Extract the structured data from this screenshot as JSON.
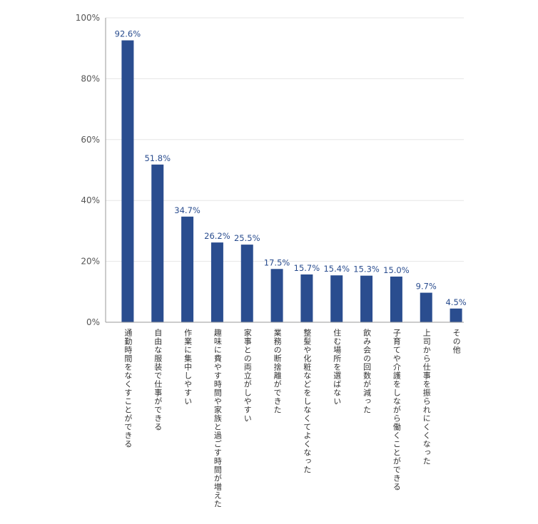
{
  "chart_data": {
    "type": "bar",
    "categories": [
      "通勤時間をなくすことができる",
      "自由な服装で仕事ができる",
      "作業に集中しやすい",
      "趣味に費やす時間や家族と過ごす時間が増えた",
      "家事との両立がしやすい",
      "業務の断捨離ができた",
      "整髪や化粧などをしなくてよくなった",
      "住む場所を選ばない",
      "飲み会の回数が減った",
      "子育てや介護をしながら働くことができる",
      "上司から仕事を振られにくくなった",
      "その他"
    ],
    "values": [
      92.6,
      51.8,
      34.7,
      26.2,
      25.5,
      17.5,
      15.7,
      15.4,
      15.3,
      15.0,
      9.7,
      4.5
    ],
    "data_labels": [
      "92.6%",
      "51.8%",
      "34.7%",
      "26.2%",
      "25.5%",
      "17.5%",
      "15.7%",
      "15.4%",
      "15.3%",
      "15.0%",
      "9.7%",
      "4.5%"
    ],
    "ylim": [
      0,
      100
    ],
    "yticks": [
      0,
      20,
      40,
      60,
      80,
      100
    ],
    "ytick_labels": [
      "0%",
      "20%",
      "40%",
      "60%",
      "80%",
      "100%"
    ],
    "grid": true,
    "bar_color": "#2a4d8f",
    "label_color": "#2a4d8f",
    "title": "",
    "xlabel": "",
    "ylabel": ""
  }
}
